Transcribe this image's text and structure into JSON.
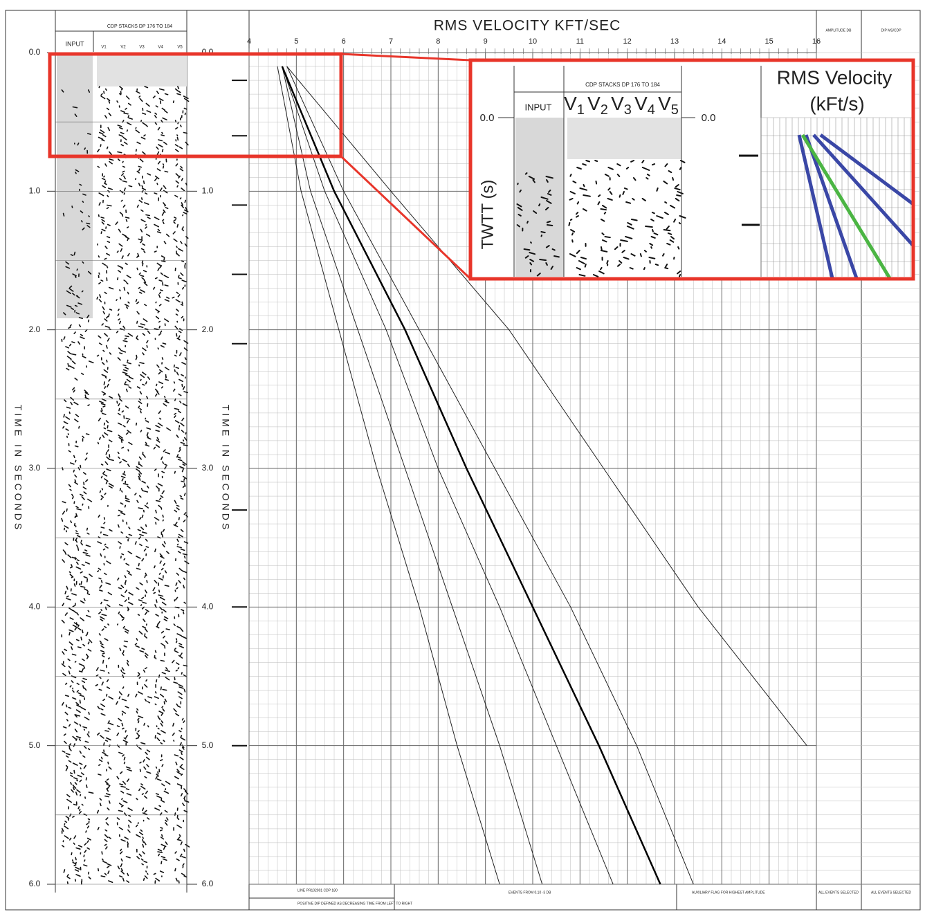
{
  "chart_data": {
    "type": "line",
    "title": "RMS VELOCITY   KFT/SEC",
    "xlabel": "TIME IN SECONDS",
    "x": [
      0.1,
      1,
      2,
      3,
      4,
      5,
      6
    ],
    "xlim": [
      0,
      6
    ],
    "xticks": [
      {
        "value": 0,
        "label": "0.0"
      },
      {
        "value": 1,
        "label": "1.0"
      },
      {
        "value": 2,
        "label": "2.0"
      },
      {
        "value": 3,
        "label": "3.0"
      },
      {
        "value": 4,
        "label": "4.0"
      },
      {
        "value": 5,
        "label": "5.0"
      },
      {
        "value": 6,
        "label": "6.0"
      }
    ],
    "ylim": [
      4,
      16
    ],
    "yticks": [
      4,
      5,
      6,
      7,
      8,
      9,
      10,
      11,
      12,
      13,
      14,
      15,
      16
    ],
    "grid": true,
    "series": [
      {
        "color": "#222222",
        "values": [
          4.6,
          5.1,
          5.9,
          6.7,
          7.6,
          8.4,
          9.3
        ]
      },
      {
        "color": "#222222",
        "values": [
          4.7,
          5.3,
          6.3,
          7.3,
          8.3,
          9.3,
          10.2
        ]
      },
      {
        "color": "#222222",
        "values": [
          4.7,
          5.6,
          6.9,
          8.0,
          9.3,
          10.5,
          11.7
        ]
      },
      {
        "color": "#000000",
        "values": [
          4.7,
          5.8,
          7.3,
          8.6,
          10.0,
          11.4,
          12.7
        ]
      },
      {
        "color": "#222222",
        "values": [
          4.8,
          6.0,
          7.6,
          9.2,
          10.8,
          12.2,
          13.4
        ]
      },
      {
        "color": "#222222",
        "values": [
          4.8,
          7.0,
          9.5,
          11.5,
          13.5,
          15.8,
          null
        ]
      }
    ]
  },
  "gather": {
    "input": "INPUT",
    "stacks": "CDP STACKS DP   176 TO   184",
    "columns": [
      "V1",
      "V2",
      "V3",
      "V4",
      "V5"
    ]
  },
  "side_panels": {
    "amplitude": "AMPLITUDE DB",
    "dip": "DIP MS/CDP"
  },
  "footer": {
    "line": "LINE PR102001 CDP 180",
    "dip_note": "POSITIVE DIP DEFINED AS DECREASING TIME FROM LEFT TO RIGHT",
    "events": "EVENTS FROM 0.10 -3 DB",
    "flag": "AUXILIARY FLAG FOR HIGHEST AMPLITUDE",
    "all_amp": "ALL EVENTS SELECTED",
    "all_dip": "ALL EVENTS SELECTED"
  },
  "inset": {
    "title": "RMS Velocity",
    "unit": "(kFt/s)",
    "ylabel": "TWTT (s)",
    "input": "INPUT",
    "stacks": "CDP STACKS DP   176 TO   184",
    "time_zero": "0.0",
    "columns": [
      {
        "v": "V",
        "sub": "1"
      },
      {
        "v": "V",
        "sub": "2"
      },
      {
        "v": "V",
        "sub": "3"
      },
      {
        "v": "V",
        "sub": "4"
      },
      {
        "v": "V",
        "sub": "5"
      }
    ]
  }
}
